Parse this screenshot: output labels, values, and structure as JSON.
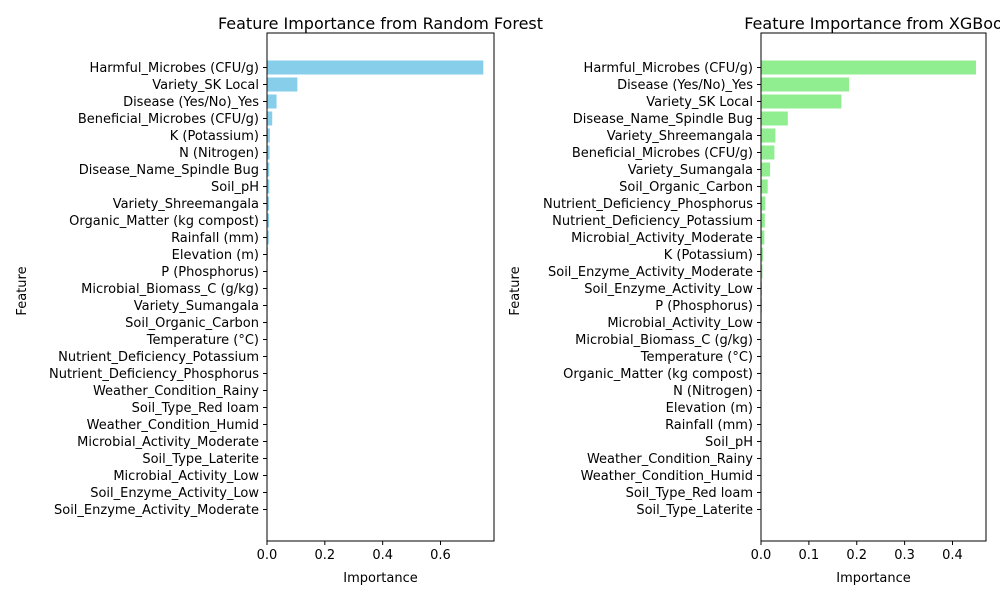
{
  "chart_data": [
    {
      "type": "bar",
      "orientation": "horizontal",
      "title": "Feature Importance from Random Forest",
      "xlabel": "Importance",
      "ylabel": "Feature",
      "xlim": [
        0,
        0.785
      ],
      "xticks": [
        0.0,
        0.2,
        0.4,
        0.6
      ],
      "xtick_labels": [
        "0.0",
        "0.2",
        "0.4",
        "0.6"
      ],
      "color": "#87ceeb",
      "categories": [
        "Harmful_Microbes (CFU/g)",
        "Variety_SK Local",
        "Disease (Yes/No)_Yes",
        "Beneficial_Microbes (CFU/g)",
        "K (Potassium)",
        "N (Nitrogen)",
        "Disease_Name_Spindle Bug",
        "Soil_pH",
        "Variety_Shreemangala",
        "Organic_Matter (kg compost)",
        "Rainfall (mm)",
        "Elevation (m)",
        "P (Phosphorus)",
        "Microbial_Biomass_C (g/kg)",
        "Variety_Sumangala",
        "Soil_Organic_Carbon",
        "Temperature (°C)",
        "Nutrient_Deficiency_Potassium",
        "Nutrient_Deficiency_Phosphorus",
        "Weather_Condition_Rainy",
        "Soil_Type_Red loam",
        "Weather_Condition_Humid",
        "Microbial_Activity_Moderate",
        "Soil_Type_Laterite",
        "Microbial_Activity_Low",
        "Soil_Enzyme_Activity_Low",
        "Soil_Enzyme_Activity_Moderate"
      ],
      "values": [
        0.748,
        0.105,
        0.033,
        0.018,
        0.01,
        0.009,
        0.008,
        0.008,
        0.007,
        0.007,
        0.006,
        0.003,
        0.002,
        0.002,
        0.002,
        0.002,
        0.001,
        0.001,
        0.001,
        0.001,
        0.001,
        0.001,
        0.0005,
        0.0005,
        0.0005,
        0.0003,
        0.0003
      ]
    },
    {
      "type": "bar",
      "orientation": "horizontal",
      "title": "Feature Importance from XGBoo",
      "xlabel": "Importance",
      "ylabel": "Feature",
      "xlim": [
        0,
        0.47
      ],
      "xticks": [
        0.0,
        0.1,
        0.2,
        0.3,
        0.4
      ],
      "xtick_labels": [
        "0.0",
        "0.1",
        "0.2",
        "0.3",
        "0.4"
      ],
      "color": "#90ee90",
      "categories": [
        "Harmful_Microbes (CFU/g)",
        "Disease (Yes/No)_Yes",
        "Variety_SK Local",
        "Disease_Name_Spindle Bug",
        "Variety_Shreemangala",
        "Beneficial_Microbes (CFU/g)",
        "Variety_Sumangala",
        "Soil_Organic_Carbon",
        "Nutrient_Deficiency_Phosphorus",
        "Nutrient_Deficiency_Potassium",
        "Microbial_Activity_Moderate",
        "K (Potassium)",
        "Soil_Enzyme_Activity_Moderate",
        "Soil_Enzyme_Activity_Low",
        "P (Phosphorus)",
        "Microbial_Activity_Low",
        "Microbial_Biomass_C (g/kg)",
        "Temperature (°C)",
        "Organic_Matter (kg compost)",
        "N (Nitrogen)",
        "Elevation (m)",
        "Rainfall (mm)",
        "Soil_pH",
        "Weather_Condition_Rainy",
        "Weather_Condition_Humid",
        "Soil_Type_Red loam",
        "Soil_Type_Laterite"
      ],
      "values": [
        0.449,
        0.184,
        0.168,
        0.056,
        0.03,
        0.028,
        0.019,
        0.014,
        0.009,
        0.008,
        0.007,
        0.004,
        0.003,
        0.002,
        0.002,
        0.001,
        0.001,
        0.0008,
        0.0006,
        0.0005,
        0.0004,
        0.0004,
        0.0003,
        0.0002,
        0.0002,
        0.0001,
        0.0001
      ]
    }
  ]
}
